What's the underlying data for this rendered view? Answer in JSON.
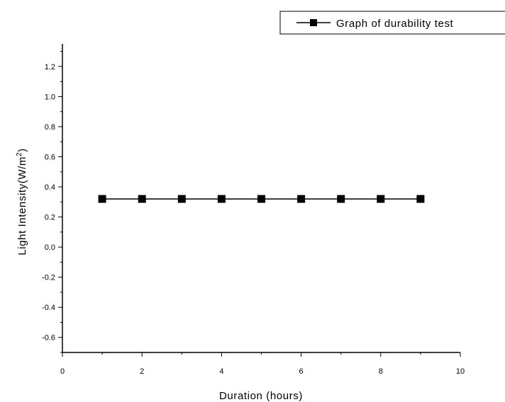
{
  "chart_data": {
    "type": "line",
    "x": [
      1,
      2,
      3,
      4,
      5,
      6,
      7,
      8,
      9
    ],
    "series": [
      {
        "name": "Graph of durability test",
        "values": [
          0.32,
          0.32,
          0.32,
          0.32,
          0.32,
          0.32,
          0.32,
          0.32,
          0.32
        ],
        "marker": "square",
        "color": "#000000"
      }
    ],
    "xlabel": "Duration (hours)",
    "ylabel_main": "Light Intensity(W/m",
    "ylabel_sup": "2",
    "ylabel_close": ")",
    "xlim": [
      0,
      10
    ],
    "ylim": [
      -0.7,
      1.35
    ],
    "xticks": [
      "0",
      "2",
      "4",
      "6",
      "8",
      "10"
    ],
    "yticks": [
      "-0.6",
      "-0.4",
      "-0.2",
      "0.0",
      "0.2",
      "0.4",
      "0.6",
      "0.8",
      "1.0",
      "1.2"
    ],
    "grid": false,
    "legend_position": "top-right",
    "legend_label": "Graph of durability test"
  }
}
